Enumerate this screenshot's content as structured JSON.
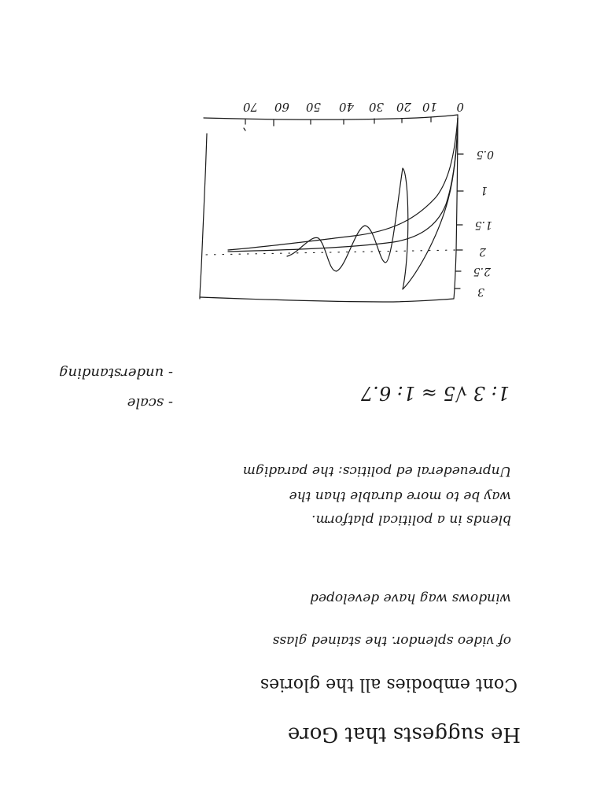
{
  "sketch": {
    "x_ticks": [
      "0",
      "10",
      "20",
      "30",
      "40",
      "50",
      "60",
      "70"
    ],
    "y_ticks": [
      "0.5",
      "1",
      "1.5",
      "2",
      "2.5",
      "3"
    ]
  },
  "equation": {
    "text": "1: 3 √5  ≈  1: 6.7"
  },
  "bullets": [
    "- scale",
    "- understanding"
  ],
  "upper_paragraph": [
    "blends   in   a political platform.",
    "way be   to  more     durable  than  the",
    "Unpreuederal  ed     politics:  the paradigm",
    "windows   wag       have  developed",
    "of  video  splendor.  the  stained glass"
  ],
  "lower_paragraph": [
    "He  suggests   that  Gore",
    "Cont  embodies   all  the  glories"
  ]
}
